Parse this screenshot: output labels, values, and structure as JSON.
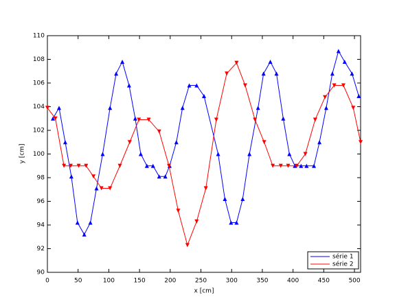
{
  "chart_data": {
    "type": "line",
    "xlabel": "x [cm]",
    "ylabel": "y [cm]",
    "xlim": [
      0,
      510
    ],
    "ylim": [
      90,
      110
    ],
    "xticks": [
      0,
      50,
      100,
      150,
      200,
      250,
      300,
      350,
      400,
      450,
      500
    ],
    "yticks": [
      90,
      92,
      94,
      96,
      98,
      100,
      102,
      104,
      106,
      108,
      110
    ],
    "legend": "lower right",
    "series": [
      {
        "name": "série 1",
        "color": "#0000ff",
        "marker": "triangle-up",
        "x": [
          9,
          19,
          29,
          39,
          49,
          60,
          70,
          80,
          90,
          102,
          112,
          122,
          133,
          143,
          152,
          162,
          172,
          182,
          192,
          199,
          210,
          220,
          231,
          243,
          255,
          278,
          289,
          299,
          308,
          318,
          329,
          343,
          352,
          363,
          373,
          384,
          394,
          403,
          413,
          422,
          434,
          443,
          454,
          464,
          474,
          484,
          496,
          507
        ],
        "values": [
          103,
          103.9,
          101,
          98.1,
          94.2,
          93.2,
          94.2,
          97.1,
          100,
          103.9,
          106.8,
          107.8,
          105.8,
          103,
          100,
          99,
          99,
          98.1,
          98.1,
          99,
          101,
          103.9,
          105.8,
          105.8,
          104.9,
          100,
          96.2,
          94.2,
          94.2,
          96.2,
          100,
          103.9,
          106.8,
          107.8,
          106.8,
          103,
          100,
          99,
          99,
          99,
          99,
          101,
          103.9,
          106.8,
          108.7,
          107.8,
          106.8,
          104.9
        ]
      },
      {
        "name": "série 2",
        "color": "#ff0000",
        "marker": "triangle-down",
        "x": [
          0,
          13,
          27,
          38,
          51,
          63,
          75,
          88,
          102,
          118,
          134,
          149,
          165,
          182,
          198,
          213,
          228,
          243,
          258,
          275,
          292,
          308,
          322,
          338,
          353,
          367,
          380,
          392,
          406,
          420,
          436,
          452,
          467,
          482,
          498,
          510
        ],
        "values": [
          103.9,
          103,
          99,
          99,
          99,
          99,
          98.1,
          97.1,
          97.1,
          99,
          101,
          102.9,
          102.9,
          101.9,
          99,
          95.2,
          92.3,
          94.3,
          97.1,
          102.9,
          106.8,
          107.7,
          105.8,
          102.9,
          101,
          99,
          99,
          99,
          99,
          100,
          102.9,
          104.8,
          105.8,
          105.8,
          103.9,
          101
        ]
      }
    ]
  }
}
